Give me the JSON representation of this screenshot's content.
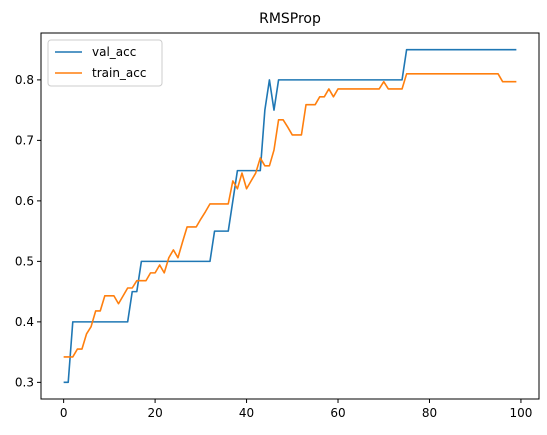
{
  "chart_data": {
    "type": "line",
    "title": "RMSProp",
    "xlabel": "",
    "ylabel": "",
    "xlim": [
      -4.95,
      103.95
    ],
    "ylim": [
      0.2725,
      0.8775
    ],
    "xticks": [
      0,
      20,
      40,
      60,
      80,
      100
    ],
    "yticks": [
      0.3,
      0.4,
      0.5,
      0.6,
      0.7,
      0.8
    ],
    "grid": false,
    "legend": "upper left",
    "series": [
      {
        "name": "val_acc",
        "color": "#1f77b4",
        "x": [
          0,
          1,
          2,
          3,
          4,
          5,
          6,
          7,
          8,
          9,
          10,
          11,
          12,
          13,
          14,
          15,
          16,
          17,
          18,
          19,
          20,
          21,
          22,
          23,
          24,
          25,
          26,
          27,
          28,
          29,
          30,
          31,
          32,
          33,
          34,
          35,
          36,
          37,
          38,
          39,
          40,
          41,
          42,
          43,
          44,
          45,
          46,
          47,
          48,
          49,
          50,
          51,
          52,
          53,
          54,
          55,
          56,
          57,
          58,
          59,
          60,
          61,
          62,
          63,
          64,
          65,
          66,
          67,
          68,
          69,
          70,
          71,
          72,
          73,
          74,
          75,
          76,
          77,
          78,
          79,
          80,
          81,
          82,
          83,
          84,
          85,
          86,
          87,
          88,
          89,
          90,
          91,
          92,
          93,
          94,
          95,
          96,
          97,
          98,
          99
        ],
        "values": [
          0.3,
          0.3,
          0.4,
          0.4,
          0.4,
          0.4,
          0.4,
          0.4,
          0.4,
          0.4,
          0.4,
          0.4,
          0.4,
          0.4,
          0.4,
          0.45,
          0.45,
          0.5,
          0.5,
          0.5,
          0.5,
          0.5,
          0.5,
          0.5,
          0.5,
          0.5,
          0.5,
          0.5,
          0.5,
          0.5,
          0.5,
          0.5,
          0.5,
          0.55,
          0.55,
          0.55,
          0.55,
          0.6,
          0.65,
          0.65,
          0.65,
          0.65,
          0.65,
          0.65,
          0.75,
          0.8,
          0.75,
          0.8,
          0.8,
          0.8,
          0.8,
          0.8,
          0.8,
          0.8,
          0.8,
          0.8,
          0.8,
          0.8,
          0.8,
          0.8,
          0.8,
          0.8,
          0.8,
          0.8,
          0.8,
          0.8,
          0.8,
          0.8,
          0.8,
          0.8,
          0.8,
          0.8,
          0.8,
          0.8,
          0.8,
          0.85,
          0.85,
          0.85,
          0.85,
          0.85,
          0.85,
          0.85,
          0.85,
          0.85,
          0.85,
          0.85,
          0.85,
          0.85,
          0.85,
          0.85,
          0.85,
          0.85,
          0.85,
          0.85,
          0.85,
          0.85,
          0.85,
          0.85,
          0.85,
          0.85
        ]
      },
      {
        "name": "train_acc",
        "color": "#ff7f0e",
        "x": [
          0,
          1,
          2,
          3,
          4,
          5,
          6,
          7,
          8,
          9,
          10,
          11,
          12,
          13,
          14,
          15,
          16,
          17,
          18,
          19,
          20,
          21,
          22,
          23,
          24,
          25,
          26,
          27,
          28,
          29,
          30,
          31,
          32,
          33,
          34,
          35,
          36,
          37,
          38,
          39,
          40,
          41,
          42,
          43,
          44,
          45,
          46,
          47,
          48,
          49,
          50,
          51,
          52,
          53,
          54,
          55,
          56,
          57,
          58,
          59,
          60,
          61,
          62,
          63,
          64,
          65,
          66,
          67,
          68,
          69,
          70,
          71,
          72,
          73,
          74,
          75,
          76,
          77,
          78,
          79,
          80,
          81,
          82,
          83,
          84,
          85,
          86,
          87,
          88,
          89,
          90,
          91,
          92,
          93,
          94,
          95,
          96,
          97,
          98,
          99
        ],
        "values": [
          0.342,
          0.342,
          0.342,
          0.355,
          0.355,
          0.38,
          0.392,
          0.418,
          0.418,
          0.443,
          0.443,
          0.443,
          0.43,
          0.443,
          0.456,
          0.456,
          0.468,
          0.468,
          0.468,
          0.481,
          0.481,
          0.494,
          0.481,
          0.506,
          0.519,
          0.506,
          0.532,
          0.557,
          0.557,
          0.557,
          0.57,
          0.582,
          0.595,
          0.595,
          0.595,
          0.595,
          0.595,
          0.633,
          0.62,
          0.646,
          0.62,
          0.633,
          0.646,
          0.671,
          0.658,
          0.658,
          0.684,
          0.734,
          0.734,
          0.722,
          0.709,
          0.709,
          0.709,
          0.759,
          0.759,
          0.759,
          0.772,
          0.772,
          0.785,
          0.772,
          0.785,
          0.785,
          0.785,
          0.785,
          0.785,
          0.785,
          0.785,
          0.785,
          0.785,
          0.785,
          0.797,
          0.785,
          0.785,
          0.785,
          0.785,
          0.81,
          0.81,
          0.81,
          0.81,
          0.81,
          0.81,
          0.81,
          0.81,
          0.81,
          0.81,
          0.81,
          0.81,
          0.81,
          0.81,
          0.81,
          0.81,
          0.81,
          0.81,
          0.81,
          0.81,
          0.81,
          0.797,
          0.797,
          0.797,
          0.797
        ]
      }
    ]
  }
}
